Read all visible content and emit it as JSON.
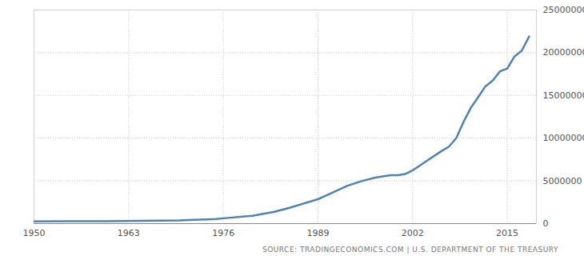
{
  "chart_data": {
    "type": "line",
    "source": "SOURCE: TRADINGECONOMICS.COM | U.S. DEPARTMENT OF THE TREASURY",
    "x": [
      1950,
      1955,
      1960,
      1965,
      1970,
      1975,
      1976,
      1980,
      1983,
      1985,
      1989,
      1990,
      1993,
      1995,
      1997,
      1999,
      2000,
      2001,
      2002,
      2004,
      2006,
      2007,
      2008,
      2009,
      2010,
      2011,
      2012,
      2013,
      2014,
      2015,
      2016,
      2017,
      2018
    ],
    "values": [
      257000,
      274000,
      290000,
      320000,
      370000,
      533000,
      620000,
      908000,
      1377000,
      1823000,
      2857000,
      3233000,
      4411000,
      4974000,
      5413000,
      5656000,
      5674000,
      5807000,
      6228000,
      7379000,
      8507000,
      9008000,
      10025000,
      11910000,
      13562000,
      14790000,
      16066000,
      16738000,
      17824000,
      18151000,
      19573000,
      20245000,
      21900000
    ],
    "color": "#4f81b5",
    "xlim": [
      1950,
      2019
    ],
    "xticks": [
      1950,
      1963,
      1976,
      1989,
      2002,
      2015
    ],
    "ylim": [
      0,
      25000000
    ],
    "yticks": [
      0,
      5000000,
      10000000,
      15000000,
      20000000,
      25000000
    ],
    "grid": true
  }
}
